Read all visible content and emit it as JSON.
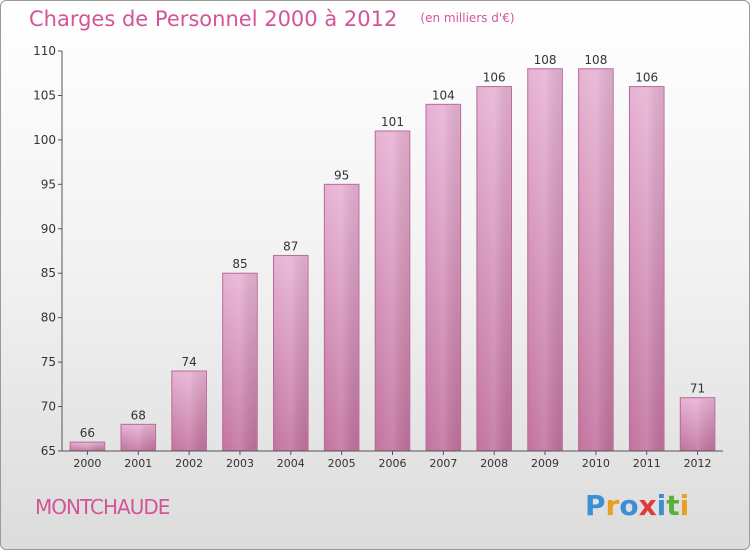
{
  "header": {
    "title": "Charges de Personnel 2000 à 2012",
    "subtitle": "(en milliers d'€)"
  },
  "footer": {
    "town": "MONTCHAUDE",
    "logo_letters": [
      "P",
      "r",
      "o",
      "x",
      "i",
      "t",
      "i"
    ],
    "logo_colors": [
      "#3b8fd4",
      "#e8a020",
      "#3b8fd4",
      "#e03a3a",
      "#3b8fd4",
      "#5ab03c",
      "#e8a020"
    ]
  },
  "chart_data": {
    "type": "bar",
    "title": "Charges de Personnel 2000 à 2012",
    "subtitle": "(en milliers d'€)",
    "categories": [
      "2000",
      "2001",
      "2002",
      "2003",
      "2004",
      "2005",
      "2006",
      "2007",
      "2008",
      "2009",
      "2010",
      "2011",
      "2012"
    ],
    "values": [
      66,
      68,
      74,
      85,
      87,
      95,
      101,
      104,
      106,
      108,
      108,
      106,
      71
    ],
    "ylim": [
      65,
      110
    ],
    "yticks": [
      65,
      70,
      75,
      80,
      85,
      90,
      95,
      100,
      105,
      110
    ],
    "xlabel": "",
    "ylabel": "",
    "grid": false,
    "colors": {
      "bar_top": "#e7b3d4",
      "bar_bottom": "#c2739e",
      "bar_edge": "#b86a96",
      "axis": "#555555",
      "text": "#333333",
      "accent": "#d35598"
    }
  }
}
